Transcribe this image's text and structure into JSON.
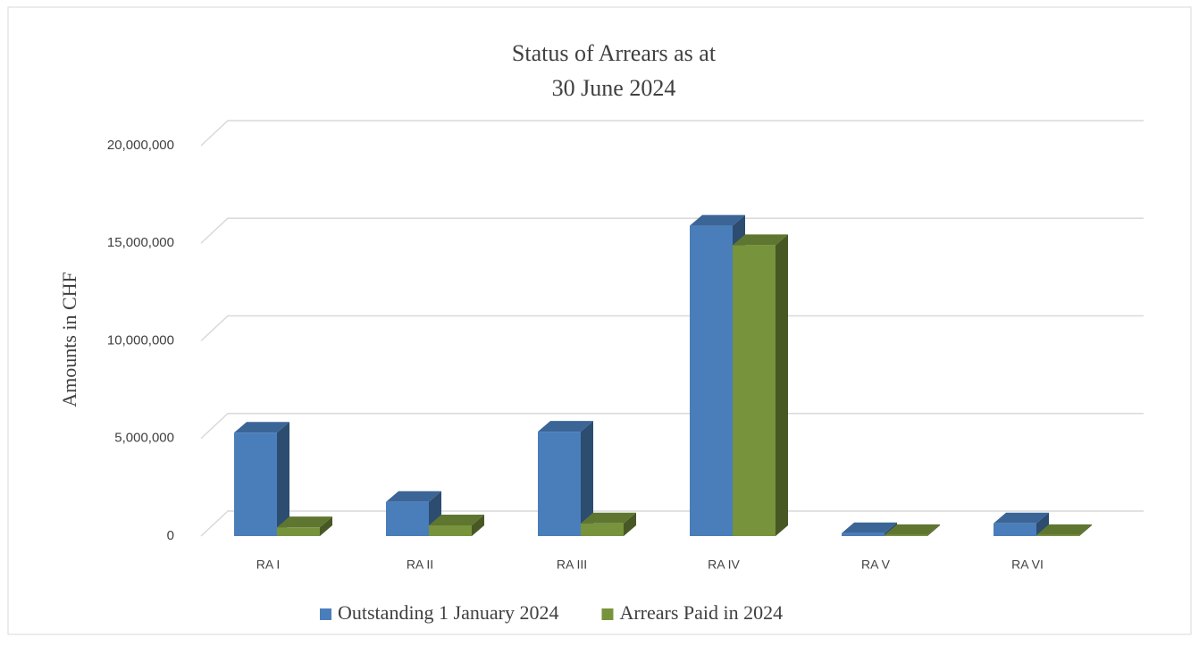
{
  "chart_data": {
    "type": "bar3d",
    "title": [
      "Status of Arrears as at",
      "30 June 2024"
    ],
    "y_label": "Amounts in CHF",
    "categories": [
      "RA I",
      "RA II",
      "RA III",
      "RA IV",
      "RA V",
      "RA VI"
    ],
    "series": [
      {
        "name": "Outstanding 1 January 2024",
        "color": "#4a7ebb",
        "values": [
          5300000,
          1750000,
          5350000,
          15900000,
          150000,
          650000
        ]
      },
      {
        "name": "Arrears Paid in 2024",
        "color": "#77933c",
        "values": [
          450000,
          550000,
          650000,
          14900000,
          50000,
          50000
        ]
      }
    ],
    "ylim": [
      0,
      20000000
    ],
    "yticks": [
      0,
      {
        "value": 5000000,
        "label": "5,000,000"
      },
      {
        "value": 10000000,
        "label": "10,000,000"
      },
      {
        "value": 15000000,
        "label": "15,000,000"
      },
      {
        "value": 20000000,
        "label": "20,000,000"
      }
    ],
    "grid": true,
    "legend": "bottom"
  }
}
